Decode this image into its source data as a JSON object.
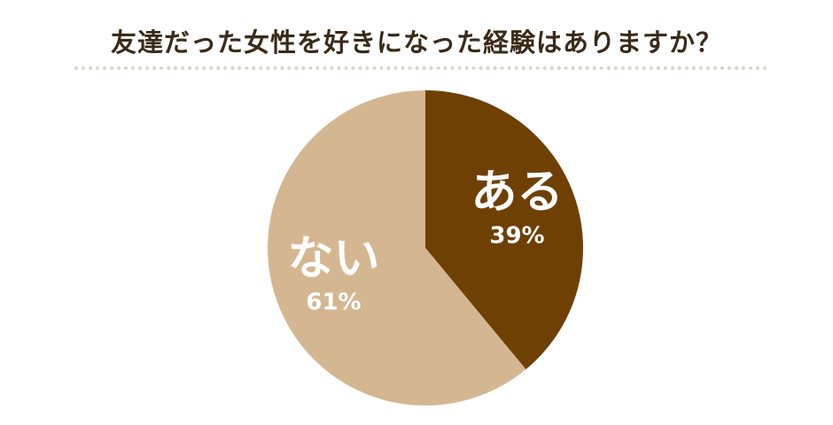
{
  "chart_data": {
    "type": "pie",
    "title": "友達だった女性を好きになった経験はありますか？",
    "categories": [
      "ある",
      "ない"
    ],
    "values": [
      39,
      61
    ],
    "labels": [
      "39%",
      "61%"
    ],
    "colors": [
      "#6e4004",
      "#d4b791"
    ],
    "start_angle": "12 o'clock",
    "direction": "clockwise",
    "legend": "none (labels on slices)"
  }
}
